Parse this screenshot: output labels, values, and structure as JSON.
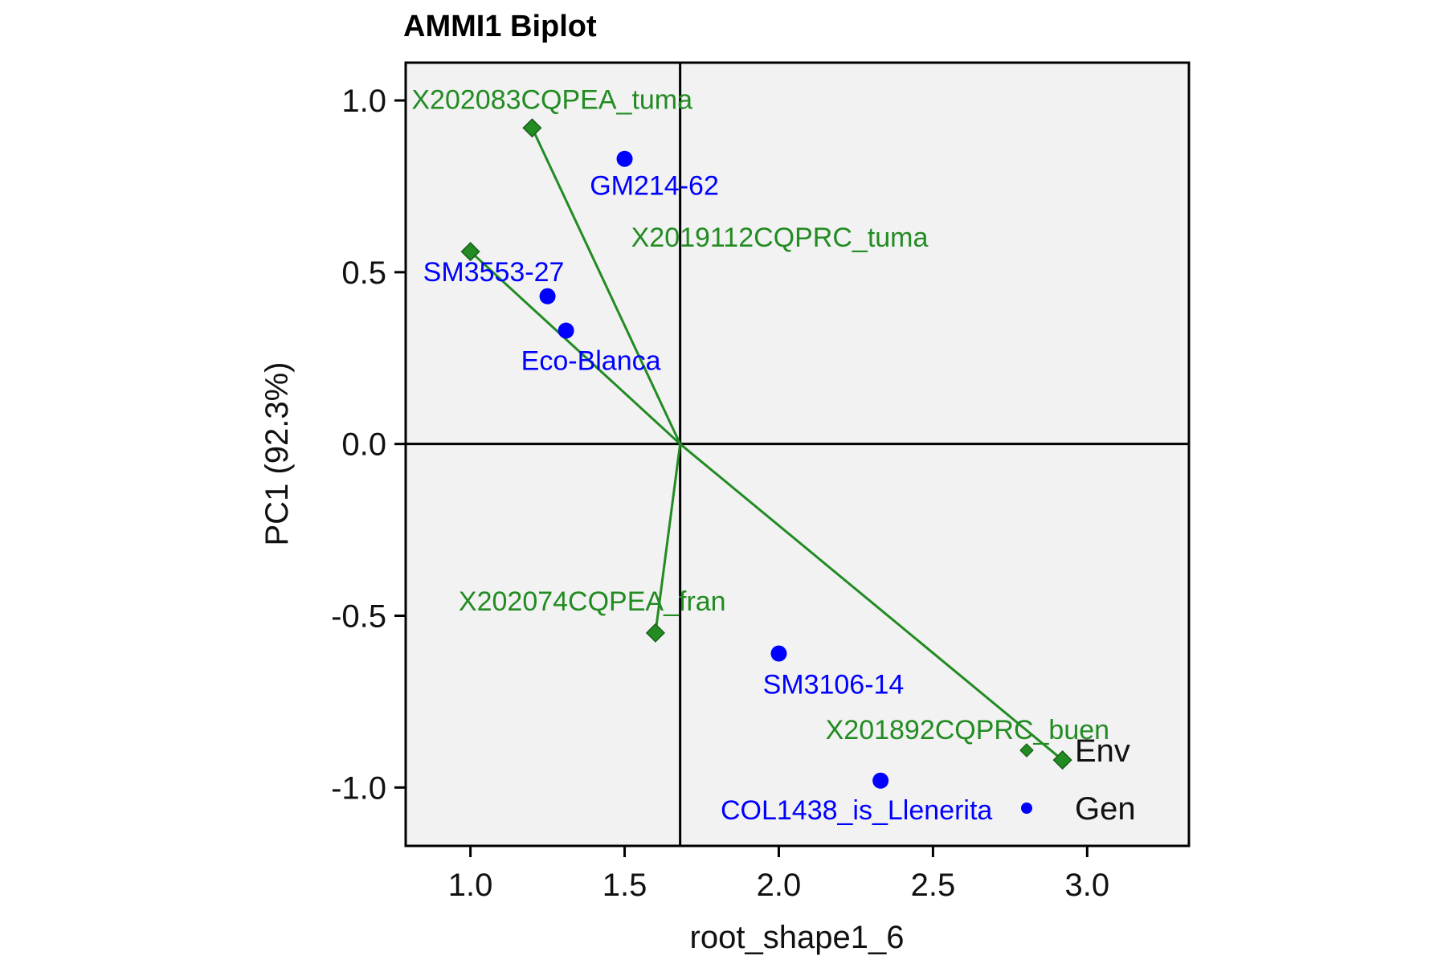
{
  "chart_data": {
    "type": "scatter",
    "title": "AMMI1 Biplot",
    "xlabel": "root_shape1_6",
    "ylabel": "PC1 (92.3%)",
    "xlim": [
      0.79,
      3.33
    ],
    "ylim": [
      -1.17,
      1.11
    ],
    "x_ticks": [
      1.0,
      1.5,
      2.0,
      2.5,
      3.0
    ],
    "x_tick_labels": [
      "1.0",
      "1.5",
      "2.0",
      "2.5",
      "3.0"
    ],
    "y_ticks": [
      1.0,
      0.5,
      0.0,
      -0.5,
      -1.0
    ],
    "y_tick_labels": [
      "1.0",
      "0.5",
      "0.0",
      "-0.5",
      "-1.0"
    ],
    "reference_lines": {
      "x": 1.68,
      "y": 0.0
    },
    "grid": false,
    "legend_position": "bottom-right",
    "colors": {
      "environment": "#228B22",
      "genotype": "#0000FF",
      "panel_bg": "#F2F2F2"
    },
    "series": [
      {
        "name": "Env",
        "marker": "diamond",
        "color": "#228B22",
        "points": [
          {
            "label": "X202083CQPEA_tuma",
            "x": 1.2,
            "y": 0.92
          },
          {
            "label": "X2019112CQPRC_tuma",
            "x": 1.0,
            "y": 0.56
          },
          {
            "label": "X202074CQPEA_fran",
            "x": 1.6,
            "y": -0.55
          },
          {
            "label": "X201892CQPRC_buen",
            "x": 2.92,
            "y": -0.92
          }
        ]
      },
      {
        "name": "Gen",
        "marker": "circle",
        "color": "#0000FF",
        "points": [
          {
            "label": "GM214-62",
            "x": 1.5,
            "y": 0.83
          },
          {
            "label": "SM3553-27",
            "x": 1.25,
            "y": 0.43
          },
          {
            "label": "Eco-Blanca",
            "x": 1.31,
            "y": 0.33
          },
          {
            "label": "SM3106-14",
            "x": 2.0,
            "y": -0.61
          },
          {
            "label": "COL1438_is_Llenerita",
            "x": 2.33,
            "y": -0.98
          }
        ]
      }
    ],
    "legend": [
      {
        "label": "Env",
        "marker": "diamond",
        "color": "#228B22"
      },
      {
        "label": "Gen",
        "marker": "circle",
        "color": "#0000FF"
      }
    ]
  }
}
